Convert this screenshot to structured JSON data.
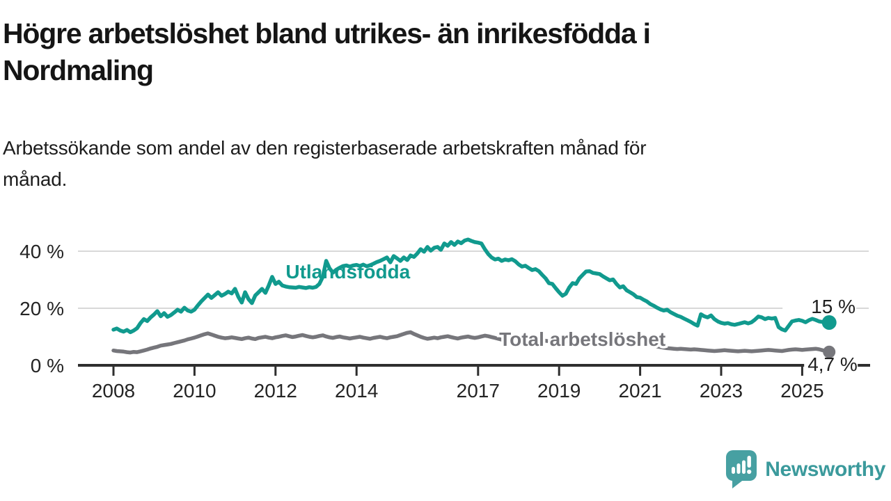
{
  "header": {
    "title_lines": [
      "Högre arbetslöshet bland utrikes- än inrikesfödda i",
      "Nordmaling"
    ],
    "subtitle_lines": [
      "Arbetssökande som andel av den registerbaserade arbetskraften månad för",
      "månad."
    ]
  },
  "footer": {
    "brand": "Newsworthy"
  },
  "colors": {
    "foreign": "#119a8e",
    "total": "#76767b",
    "grid": "#d8d8d8",
    "axis": "#2e2e2e",
    "text": "#242424",
    "logo": "#47a0a2"
  },
  "chart_data": {
    "type": "line",
    "title": "Högre arbetslöshet bland utrikes- än inrikesfödda i Nordmaling",
    "subtitle": "Arbetssökande som andel av den registerbaserade arbetskraften månad för månad.",
    "xlabel": "",
    "ylabel": "",
    "x_start_year": 2008,
    "x_points_per_year": 12,
    "x_end": "2025-09",
    "ylim": [
      0,
      46
    ],
    "y_ticks": [
      0,
      20,
      40
    ],
    "y_tick_labels": [
      "0 %",
      "20 %",
      "40 %"
    ],
    "x_tick_years": [
      2008,
      2010,
      2012,
      2014,
      2017,
      2019,
      2021,
      2023,
      2025
    ],
    "x_tick_labels": [
      "2008",
      "2010",
      "2012",
      "2014",
      "2017",
      "2019",
      "2021",
      "2023",
      "2025"
    ],
    "grid": "horizontal-only",
    "legend_position": "inline-labels",
    "series": [
      {
        "name": "Utlandsfödda",
        "color_key": "foreign",
        "end_label": "15 %",
        "end_value": 15,
        "label_year": 2012.25,
        "label_pct": 30.5,
        "halo": false,
        "values": [
          12.5,
          12.9,
          12.2,
          11.8,
          12.4,
          11.6,
          12.2,
          13.0,
          14.8,
          16.2,
          15.5,
          16.8,
          17.8,
          19.0,
          17.2,
          18.3,
          17.0,
          17.6,
          18.5,
          19.5,
          18.8,
          20.2,
          19.2,
          18.8,
          19.5,
          21.0,
          22.4,
          23.6,
          24.8,
          23.6,
          24.6,
          25.6,
          24.4,
          25.0,
          25.8,
          25.2,
          26.8,
          24.0,
          22.0,
          25.6,
          23.2,
          21.8,
          24.5,
          25.6,
          26.8,
          25.4,
          28.0,
          31.0,
          28.5,
          29.3,
          28.0,
          27.6,
          27.4,
          27.3,
          27.2,
          27.5,
          27.3,
          27.1,
          27.4,
          27.2,
          27.5,
          28.5,
          31.0,
          36.6,
          34.0,
          32.5,
          33.5,
          34.2,
          34.8,
          35.0,
          34.6,
          35.0,
          35.2,
          34.8,
          35.3,
          34.7,
          35.1,
          35.6,
          36.2,
          36.6,
          37.2,
          37.8,
          36.1,
          38.3,
          37.5,
          36.6,
          37.8,
          36.9,
          38.5,
          38.0,
          39.2,
          40.7,
          39.8,
          41.5,
          40.2,
          41.2,
          41.5,
          40.5,
          42.7,
          41.9,
          43.2,
          42.2,
          43.4,
          42.8,
          43.7,
          44.1,
          43.6,
          43.2,
          43.0,
          42.7,
          40.7,
          39.0,
          37.8,
          37.1,
          37.4,
          36.6,
          37.1,
          36.8,
          37.2,
          36.5,
          35.4,
          34.6,
          34.9,
          34.1,
          33.4,
          33.7,
          33.0,
          31.7,
          30.5,
          28.8,
          28.5,
          27.0,
          25.6,
          24.4,
          25.1,
          27.3,
          28.8,
          28.5,
          30.5,
          31.7,
          32.9,
          33.0,
          32.4,
          32.2,
          32.0,
          31.2,
          30.5,
          29.8,
          30.1,
          28.5,
          27.3,
          27.7,
          26.3,
          25.6,
          24.9,
          23.9,
          23.7,
          23.0,
          22.4,
          21.5,
          20.9,
          20.2,
          19.6,
          19.2,
          19.5,
          18.6,
          18.0,
          17.4,
          17.0,
          16.4,
          15.8,
          15.2,
          14.5,
          13.9,
          17.9,
          17.2,
          16.8,
          17.5,
          16.2,
          15.4,
          14.9,
          14.6,
          14.8,
          14.4,
          14.2,
          14.5,
          14.8,
          15.1,
          14.7,
          15.1,
          16.0,
          17.1,
          16.8,
          16.2,
          16.6,
          16.4,
          16.6,
          13.4,
          12.6,
          12.2,
          13.8,
          15.4,
          15.7,
          15.9,
          15.6,
          15.1,
          15.8,
          16.3,
          15.9,
          15.4,
          15.2,
          15.6,
          15.0
        ]
      },
      {
        "name": "Total arbetslöshet",
        "color_key": "total",
        "end_label": "4,7 %",
        "end_value": 4.7,
        "label_year": 2017.52,
        "label_pct": 6.8,
        "halo": true,
        "values": [
          5.2,
          5.0,
          4.9,
          4.8,
          4.6,
          4.5,
          4.7,
          4.6,
          4.9,
          5.2,
          5.5,
          5.9,
          6.2,
          6.5,
          6.9,
          7.1,
          7.3,
          7.5,
          7.8,
          8.1,
          8.4,
          8.7,
          9.1,
          9.4,
          9.7,
          10.1,
          10.5,
          10.9,
          11.2,
          10.8,
          10.4,
          10.0,
          9.7,
          9.5,
          9.6,
          9.8,
          9.6,
          9.4,
          9.2,
          9.5,
          9.7,
          9.4,
          9.2,
          9.6,
          9.8,
          10.0,
          9.7,
          9.5,
          9.8,
          10.0,
          10.3,
          10.5,
          10.2,
          9.9,
          10.1,
          10.4,
          10.6,
          10.3,
          10.0,
          9.8,
          10.0,
          10.3,
          10.5,
          10.1,
          9.8,
          9.6,
          9.9,
          10.1,
          9.8,
          9.6,
          9.4,
          9.6,
          9.8,
          10.0,
          9.7,
          9.5,
          9.3,
          9.6,
          9.8,
          10.0,
          9.7,
          9.5,
          9.8,
          10.0,
          10.2,
          10.6,
          11.0,
          11.4,
          11.6,
          11.0,
          10.5,
          10.0,
          9.6,
          9.3,
          9.5,
          9.7,
          9.5,
          9.8,
          10.0,
          10.2,
          9.9,
          9.6,
          9.4,
          9.7,
          9.9,
          10.1,
          9.8,
          9.6,
          9.8,
          10.1,
          10.4,
          10.2,
          9.9,
          9.6,
          9.3,
          9.0,
          8.7,
          8.5,
          8.7,
          8.9,
          9.1,
          9.3,
          9.0,
          8.8,
          8.6,
          8.8,
          9.0,
          8.8,
          8.6,
          8.4,
          8.6,
          8.8,
          8.6,
          8.4,
          8.2,
          8.4,
          8.6,
          8.4,
          8.2,
          8.0,
          8.2,
          8.4,
          8.2,
          8.0,
          8.2,
          8.4,
          8.6,
          9.0,
          9.2,
          9.0,
          8.8,
          8.6,
          8.4,
          8.2,
          8.0,
          7.8,
          7.6,
          7.4,
          7.2,
          7.0,
          6.8,
          6.6,
          6.4,
          6.2,
          6.0,
          5.9,
          5.8,
          5.7,
          5.8,
          5.7,
          5.6,
          5.5,
          5.6,
          5.5,
          5.4,
          5.3,
          5.2,
          5.1,
          5.0,
          5.1,
          5.2,
          5.3,
          5.2,
          5.1,
          5.0,
          4.9,
          5.0,
          5.1,
          5.0,
          4.9,
          5.0,
          5.1,
          5.2,
          5.3,
          5.4,
          5.3,
          5.2,
          5.1,
          5.0,
          5.2,
          5.4,
          5.5,
          5.6,
          5.5,
          5.4,
          5.5,
          5.6,
          5.7,
          5.8,
          5.6,
          5.3,
          5.0,
          4.7
        ]
      }
    ]
  }
}
